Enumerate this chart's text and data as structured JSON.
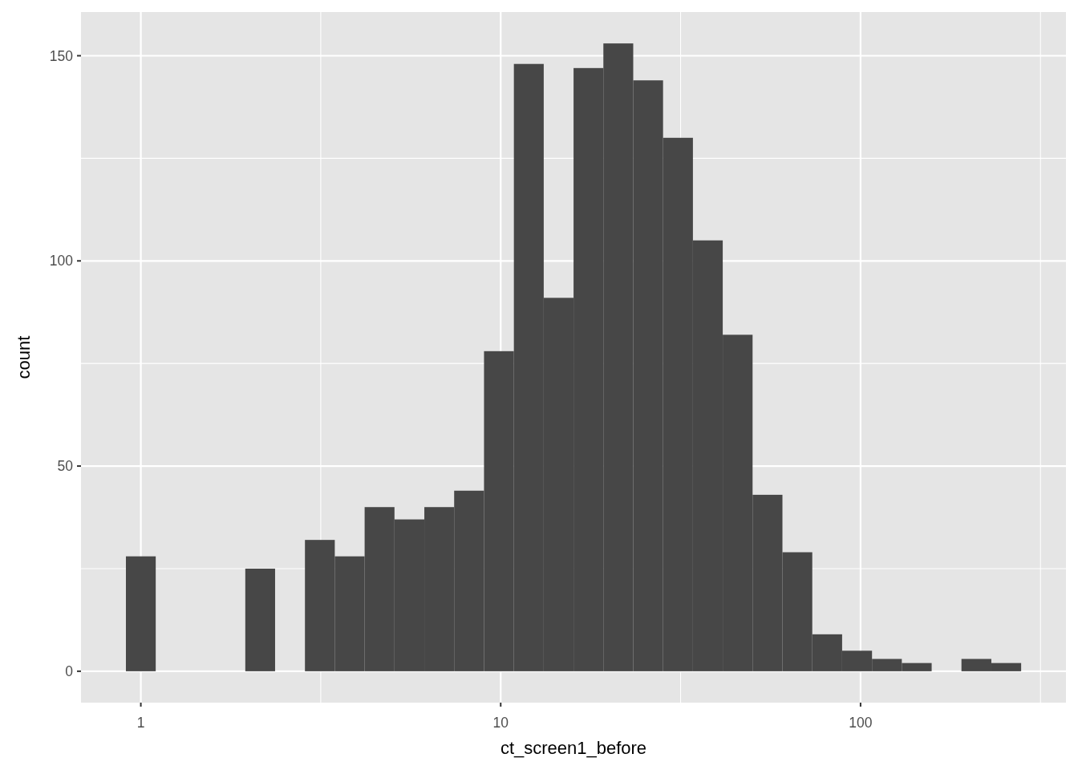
{
  "chart_data": {
    "type": "histogram",
    "xlabel": "ct_screen1_before",
    "ylabel": "count",
    "bins": [
      0.909,
      1.1,
      1.332,
      1.612,
      1.951,
      2.361,
      2.858,
      3.459,
      4.187,
      5.068,
      6.135,
      7.425,
      8.988,
      10.88,
      13.17,
      15.94,
      19.29,
      23.35,
      28.26,
      34.21,
      41.4,
      50.11,
      60.66,
      73.42,
      88.87,
      107.6,
      130.2,
      157.6,
      190.7,
      230.9,
      279.4
    ],
    "values": [
      28,
      0,
      0,
      0,
      25,
      0,
      32,
      28,
      40,
      37,
      40,
      44,
      78,
      148,
      91,
      147,
      153,
      144,
      130,
      105,
      82,
      43,
      29,
      9,
      5,
      3,
      2,
      0,
      3,
      2
    ],
    "color": "#474747",
    "log": "x",
    "xlim": [
      0.682,
      372.2
    ],
    "xticks": [
      1,
      {
        "value": 3.162,
        "label": null
      },
      10,
      {
        "value": 31.62,
        "label": null
      },
      100,
      {
        "value": 316.2,
        "label": null
      }
    ],
    "ylim": [
      -7.65,
      160.65
    ],
    "yticks": [
      0,
      {
        "value": 25,
        "label": null
      },
      50,
      {
        "value": 75,
        "label": null
      },
      100,
      {
        "value": 125,
        "label": null
      },
      150
    ],
    "grid": true
  }
}
